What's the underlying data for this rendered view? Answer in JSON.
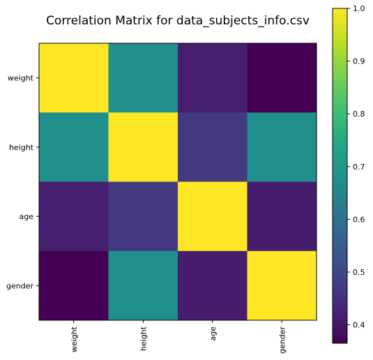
{
  "chart_data": {
    "type": "heatmap",
    "title": "Correlation Matrix for data_subjects_info.csv",
    "x_labels": [
      "weight",
      "height",
      "age",
      "gender"
    ],
    "y_labels": [
      "weight",
      "height",
      "age",
      "gender"
    ],
    "matrix": [
      [
        1.0,
        0.68,
        0.42,
        0.365
      ],
      [
        0.68,
        1.0,
        0.47,
        0.68
      ],
      [
        0.42,
        0.47,
        1.0,
        0.415
      ],
      [
        0.365,
        0.68,
        0.415,
        1.0
      ]
    ],
    "colormap": "viridis",
    "vmin": 0.365,
    "vmax": 1.0,
    "colorbar": {
      "ticks": [
        0.4,
        0.5,
        0.6,
        0.7,
        0.8,
        0.9,
        1.0
      ],
      "tick_labels": [
        "0.4",
        "0.5",
        "0.6",
        "0.7",
        "0.8",
        "0.9",
        "1.0"
      ]
    }
  }
}
